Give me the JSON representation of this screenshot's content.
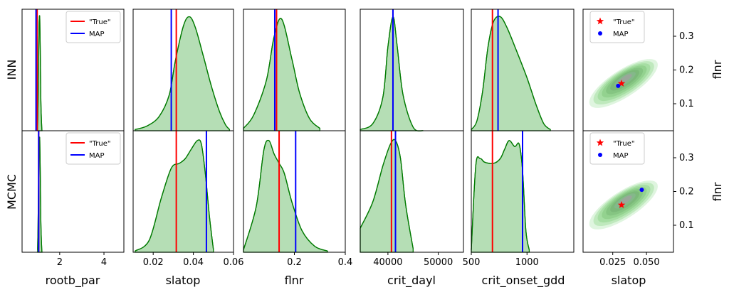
{
  "chart_data": {
    "type": "density-grid",
    "colors": {
      "density_line": "#007a00",
      "density_fill": "#2ca02c",
      "true": "#ff0000",
      "map": "#0000ff",
      "contour": [
        "#dff5df",
        "#bfe9bd",
        "#a6dea3",
        "#93d28f",
        "#85c582",
        "#7bb979",
        "#84b88a",
        "#9aa79a"
      ]
    },
    "rows": [
      {
        "label": "INN"
      },
      {
        "label": "MCMC"
      }
    ],
    "columns": [
      {
        "xlabel": "rootb_par",
        "xticks": [
          "2",
          "4"
        ],
        "xtick_values": [
          2,
          4
        ],
        "xlim": [
          0.3,
          4.9
        ]
      },
      {
        "xlabel": "slatop",
        "xticks": [
          "0.02",
          "0.04",
          "0.06"
        ],
        "xtick_values": [
          0.02,
          0.04,
          0.06
        ],
        "xlim": [
          0.01,
          0.06
        ]
      },
      {
        "xlabel": "flnr",
        "xticks": [
          "0.2",
          "0.4"
        ],
        "xtick_values": [
          0.2,
          0.4
        ],
        "xlim": [
          0.0,
          0.4
        ]
      },
      {
        "xlabel": "crit_dayl",
        "xticks": [
          "40000",
          "50000"
        ],
        "xtick_values": [
          40000,
          50000
        ],
        "xlim": [
          34500,
          55000
        ]
      },
      {
        "xlabel": "crit_onset_gdd",
        "xticks": [
          "500",
          "1000"
        ],
        "xtick_values": [
          500,
          1000
        ],
        "xlim": [
          500,
          1420
        ]
      }
    ],
    "density": [
      [
        {
          "x": [
            1.0,
            1.02,
            1.05,
            1.07,
            1.1,
            1.13,
            1.15,
            1.18,
            1.2
          ],
          "y": [
            0.02,
            0.2,
            0.65,
            0.9,
            0.93,
            0.55,
            0.25,
            0.06,
            0.0
          ],
          "true": 0.98,
          "map": 0.93
        },
        {
          "x": [
            0.011,
            0.017,
            0.023,
            0.028,
            0.031,
            0.035,
            0.038,
            0.041,
            0.045,
            0.049,
            0.053,
            0.056,
            0.058
          ],
          "y": [
            0.01,
            0.04,
            0.12,
            0.3,
            0.58,
            0.87,
            0.95,
            0.86,
            0.62,
            0.37,
            0.16,
            0.05,
            0.01
          ],
          "true": 0.0315,
          "map": 0.029
        },
        {
          "x": [
            0.0,
            0.04,
            0.09,
            0.12,
            0.15,
            0.19,
            0.22,
            0.26,
            0.3
          ],
          "y": [
            0.02,
            0.13,
            0.42,
            0.78,
            0.93,
            0.6,
            0.32,
            0.1,
            0.02
          ],
          "true": 0.13,
          "map": 0.123
        },
        {
          "x": [
            34500,
            37000,
            39000,
            40000,
            41000,
            41800,
            43000,
            45000,
            47000
          ],
          "y": [
            0.01,
            0.06,
            0.28,
            0.7,
            0.95,
            0.72,
            0.3,
            0.03,
            0.0
          ],
          "true": 41000,
          "map": 41000
        },
        {
          "x": [
            500,
            550,
            600,
            650,
            700,
            760,
            820,
            900,
            1000,
            1080,
            1150,
            1210
          ],
          "y": [
            0.01,
            0.08,
            0.32,
            0.7,
            0.91,
            0.95,
            0.86,
            0.68,
            0.44,
            0.22,
            0.06,
            0.01
          ],
          "true": 690,
          "map": 740
        }
      ],
      [
        {
          "x": [
            1.0,
            1.02,
            1.05,
            1.07,
            1.1,
            1.13,
            1.15,
            1.18,
            1.2
          ],
          "y": [
            0.02,
            0.2,
            0.65,
            0.9,
            0.93,
            0.55,
            0.25,
            0.06,
            0.0
          ],
          "true": 1.05,
          "map": 1.05
        },
        {
          "x": [
            0.011,
            0.018,
            0.024,
            0.029,
            0.033,
            0.036,
            0.039,
            0.042,
            0.044,
            0.046,
            0.048,
            0.05
          ],
          "y": [
            0.01,
            0.1,
            0.45,
            0.7,
            0.74,
            0.78,
            0.86,
            0.93,
            0.9,
            0.65,
            0.3,
            0.02
          ],
          "true": 0.0315,
          "map": 0.0465
        },
        {
          "x": [
            0.0,
            0.05,
            0.08,
            0.1,
            0.12,
            0.14,
            0.16,
            0.19,
            0.23,
            0.28,
            0.33
          ],
          "y": [
            0.02,
            0.38,
            0.85,
            0.93,
            0.82,
            0.74,
            0.66,
            0.42,
            0.18,
            0.05,
            0.01
          ],
          "true": 0.14,
          "map": 0.205
        },
        {
          "x": [
            34500,
            37000,
            39000,
            40500,
            41500,
            42500,
            43500,
            45000
          ],
          "y": [
            0.2,
            0.42,
            0.72,
            0.9,
            0.93,
            0.78,
            0.4,
            0.03
          ],
          "true": 40700,
          "map": 41500
        },
        {
          "x": [
            500,
            540,
            580,
            620,
            700,
            760,
            800,
            840,
            890,
            930,
            960,
            990,
            1020
          ],
          "y": [
            0.02,
            0.72,
            0.78,
            0.75,
            0.74,
            0.78,
            0.86,
            0.93,
            0.88,
            0.9,
            0.68,
            0.18,
            0.02
          ],
          "true": 690,
          "map": 960
        }
      ]
    ],
    "joint": {
      "xlabel": "slatop",
      "ylabel": "flnr",
      "xticks": [
        "0.025",
        "0.050"
      ],
      "xtick_values": [
        0.025,
        0.05
      ],
      "yticks": [
        "0.1",
        "0.2",
        "0.3"
      ],
      "ytick_values": [
        0.1,
        0.2,
        0.3
      ],
      "xlim": [
        0.003,
        0.07
      ],
      "ylim": [
        0.02,
        0.38
      ],
      "points": [
        {
          "true": [
            0.0315,
            0.16
          ],
          "map": [
            0.029,
            0.153
          ]
        },
        {
          "true": [
            0.0315,
            0.16
          ],
          "map": [
            0.0465,
            0.205
          ]
        }
      ]
    },
    "legend": {
      "true_label": "\"True\"",
      "map_label": "MAP"
    }
  }
}
